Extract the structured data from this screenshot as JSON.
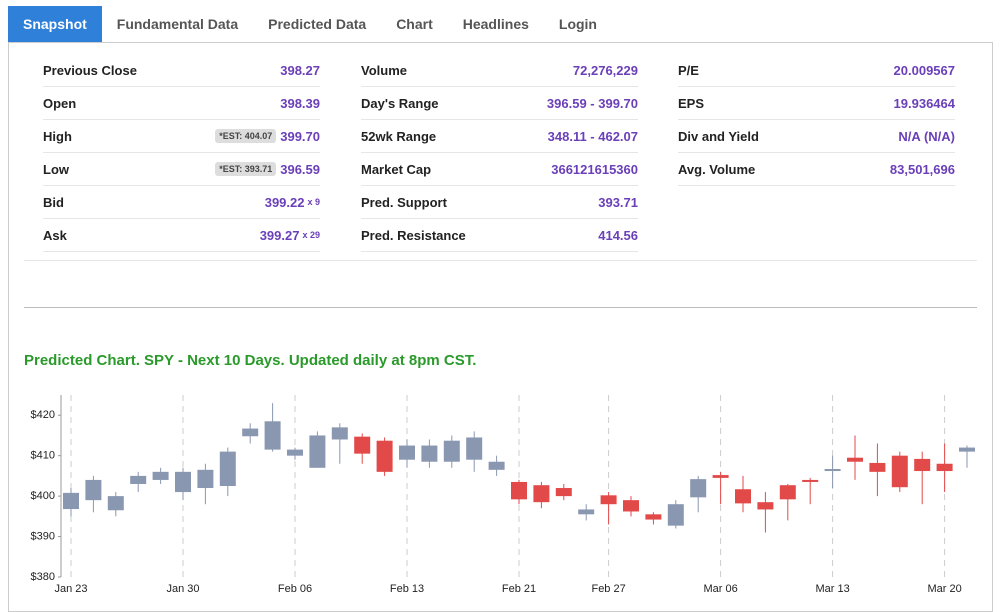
{
  "tabs": [
    "Snapshot",
    "Fundamental Data",
    "Predicted Data",
    "Chart",
    "Headlines",
    "Login"
  ],
  "quote": {
    "columns": [
      [
        {
          "label": "Previous Close",
          "value": "398.27"
        },
        {
          "label": "Open",
          "value": "398.39"
        },
        {
          "label": "High",
          "est": "*EST: 404.07",
          "value": "399.70"
        },
        {
          "label": "Low",
          "est": "*EST: 393.71",
          "value": "396.59"
        },
        {
          "label": "Bid",
          "value": "399.22",
          "size": "x 9"
        },
        {
          "label": "Ask",
          "value": "399.27",
          "size": "x 29"
        }
      ],
      [
        {
          "label": "Volume",
          "value": "72,276,229"
        },
        {
          "label": "Day's Range",
          "value": "396.59 - 399.70"
        },
        {
          "label": "52wk Range",
          "value": "348.11 - 462.07"
        },
        {
          "label": "Market Cap",
          "value": "366121615360"
        },
        {
          "label": "Pred. Support",
          "value": "393.71"
        },
        {
          "label": "Pred. Resistance",
          "value": "414.56"
        }
      ],
      [
        {
          "label": "P/E",
          "value": "20.009567"
        },
        {
          "label": "EPS",
          "value": "19.936464"
        },
        {
          "label": "Div and Yield",
          "value": "N/A (N/A)"
        },
        {
          "label": "Avg. Volume",
          "value": "83,501,696"
        }
      ]
    ]
  },
  "chart_data": {
    "type": "candlestick",
    "title": "Predicted Chart. SPY - Next 10 Days. Updated daily at 8pm CST.",
    "categories": [
      "Jan 23",
      null,
      null,
      null,
      null,
      "Jan 30",
      null,
      null,
      null,
      null,
      "Feb 06",
      null,
      null,
      null,
      null,
      "Feb 13",
      null,
      null,
      null,
      null,
      "Feb 21",
      null,
      null,
      null,
      "Feb 27",
      null,
      null,
      null,
      null,
      "Mar 06",
      null,
      null,
      null,
      null,
      "Mar 13",
      null,
      null,
      null,
      null,
      "Mar 20",
      null
    ],
    "open": [
      396.8,
      399,
      396.5,
      403,
      404,
      401,
      402,
      402.5,
      414.8,
      411.5,
      410,
      407,
      414,
      414.7,
      413.7,
      409,
      408.5,
      408.5,
      409,
      406.5,
      403.5,
      402.7,
      402,
      395.5,
      400.2,
      399,
      395.5,
      392.7,
      399.7,
      405.2,
      401.7,
      398.5,
      402.7,
      404,
      406.2,
      409.5,
      408.2,
      410,
      409.2,
      408,
      411
    ],
    "high": [
      402,
      405,
      401,
      406,
      407,
      407,
      408,
      412,
      418,
      423,
      412,
      416,
      418,
      415.5,
      414.5,
      414,
      414,
      415,
      416,
      410,
      404,
      403.5,
      403,
      398,
      401,
      400,
      396,
      399,
      405,
      406,
      405,
      401,
      403,
      404.5,
      410,
      415,
      413,
      411,
      411,
      413,
      412.5
    ],
    "low": [
      395,
      396,
      395,
      401,
      403,
      399,
      398,
      400,
      413,
      411,
      409,
      407,
      408,
      408,
      405,
      407,
      407,
      407,
      406,
      405,
      398,
      397,
      399,
      394,
      393,
      395,
      393,
      392,
      396,
      398,
      396,
      391,
      394,
      398,
      402,
      404,
      400,
      401,
      398,
      401,
      407
    ],
    "close": [
      400.8,
      404,
      400,
      405,
      406,
      406,
      406.5,
      411,
      416.7,
      418.5,
      411.5,
      415,
      417,
      410.5,
      406,
      412.5,
      412.5,
      413.7,
      414.5,
      408.5,
      399.2,
      398.5,
      400,
      396.7,
      398,
      396.2,
      394.2,
      398,
      404.2,
      404.5,
      398.2,
      396.7,
      399.2,
      403.5,
      406.7,
      408.5,
      406,
      402.2,
      406.2,
      406.2,
      412
    ],
    "up_color": "#8a97b0",
    "down_color": "#e24a4a",
    "ylim": [
      380,
      425
    ],
    "yticks": [
      {
        "value": 380,
        "label": "$380"
      },
      {
        "value": 390,
        "label": "$390"
      },
      {
        "value": 400,
        "label": "$400"
      },
      {
        "value": 410,
        "label": "$410"
      },
      {
        "value": 420,
        "label": "$420"
      }
    ],
    "grid": true
  }
}
